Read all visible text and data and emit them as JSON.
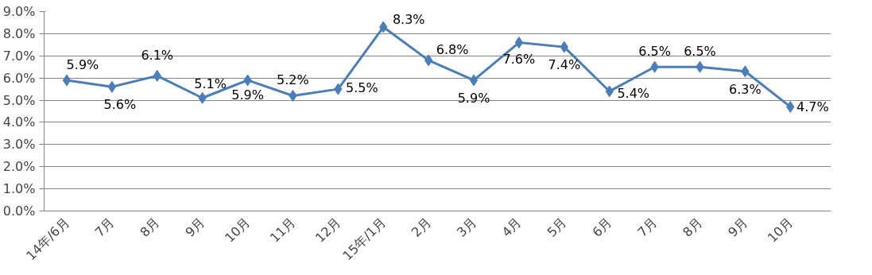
{
  "chart_data": {
    "type": "line",
    "categories": [
      "14年/6月",
      "7月",
      "8月",
      "9月",
      "10月",
      "11月",
      "12月",
      "15年/1月",
      "2月",
      "3月",
      "4月",
      "5月",
      "6月",
      "7月",
      "8月",
      "9月",
      "10月"
    ],
    "series": [
      {
        "color": "#4a7ebb",
        "values": [
          5.9,
          5.6,
          6.1,
          5.1,
          5.9,
          5.2,
          5.5,
          8.3,
          6.8,
          5.9,
          7.6,
          7.4,
          5.4,
          6.5,
          6.5,
          6.3,
          4.7
        ],
        "value_labels": [
          "5.9%",
          "5.6%",
          "6.1%",
          "5.1%",
          "5.9%",
          "5.2%",
          "5.5%",
          "8.3%",
          "6.8%",
          "5.9%",
          "7.6%",
          "7.4%",
          "5.4%",
          "6.5%",
          "6.5%",
          "6.3%",
          "4.7%"
        ]
      }
    ],
    "ylim": [
      0,
      9
    ],
    "yticks": [
      {
        "value": 0,
        "label": "0.0%"
      },
      {
        "value": 1,
        "label": "1.0%"
      },
      {
        "value": 2,
        "label": "2.0%"
      },
      {
        "value": 3,
        "label": "3.0%"
      },
      {
        "value": 4,
        "label": "4.0%"
      },
      {
        "value": 5,
        "label": "5.0%"
      },
      {
        "value": 6,
        "label": "6.0%"
      },
      {
        "value": 7,
        "label": "7.0%"
      },
      {
        "value": 8,
        "label": "8.0%"
      },
      {
        "value": 9,
        "label": "9.0%"
      }
    ],
    "grid": "y",
    "marker": "diamond",
    "line_style": "solid"
  }
}
